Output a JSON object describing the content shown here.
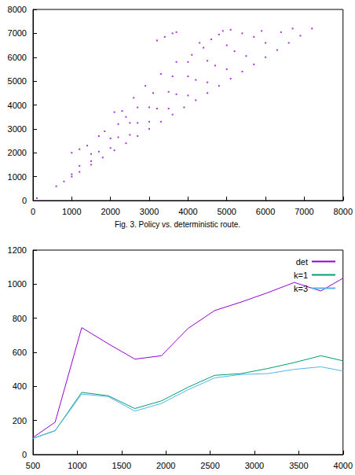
{
  "chart_data": [
    {
      "type": "scatter",
      "title": "Fig. 3. Policy vs. deterministic route.",
      "color": "#9400d3",
      "x": [
        600,
        800,
        1000,
        1200,
        1500,
        1800,
        2100,
        2400,
        2700,
        3000,
        3300,
        3600,
        3900,
        4200,
        4500,
        4800,
        5100,
        5400,
        5700,
        6000,
        6300,
        6600,
        6900,
        7200,
        1000,
        1500,
        2000,
        2500,
        3000,
        3500,
        4000,
        4500,
        5000,
        5500,
        6000,
        6400,
        1200,
        1700,
        2200,
        2700,
        3200,
        3700,
        4200,
        4700,
        5200,
        5700,
        5900,
        1500,
        2000,
        2500,
        3000,
        3500,
        4000,
        4500,
        5000,
        5400,
        2200,
        2700,
        3100,
        3600,
        4000,
        4400,
        4800,
        2100,
        2300,
        2600,
        2900,
        3300,
        3700,
        4100,
        4300,
        4600,
        5100,
        4900,
        1850,
        1700,
        2400,
        100,
        1000,
        1200,
        1400,
        3200,
        3400,
        3600,
        3700,
        6700
      ],
      "values": [
        600,
        800,
        1000,
        1200,
        1500,
        1800,
        2100,
        2400,
        2700,
        3000,
        3300,
        3600,
        3900,
        4200,
        4500,
        4800,
        5100,
        5400,
        5700,
        6000,
        6300,
        6600,
        6900,
        7200,
        1100,
        1650,
        2200,
        2750,
        3300,
        3850,
        4400,
        4950,
        5500,
        6050,
        6600,
        7050,
        1450,
        2050,
        2650,
        3250,
        3850,
        4450,
        5050,
        5650,
        6250,
        6850,
        7100,
        1950,
        2600,
        3250,
        3900,
        4550,
        5200,
        5850,
        6500,
        7000,
        3200,
        3900,
        4500,
        5200,
        5800,
        6400,
        6950,
        3700,
        3750,
        4300,
        4800,
        5300,
        5800,
        6100,
        6600,
        6750,
        7150,
        7100,
        2900,
        2700,
        3500,
        100,
        2000,
        2150,
        2300,
        6700,
        6850,
        7000,
        7050,
        7200
      ],
      "xlim": [
        0,
        8000
      ],
      "xticks": [
        0,
        1000,
        2000,
        3000,
        4000,
        5000,
        6000,
        7000,
        8000
      ],
      "ylim": [
        0,
        8000
      ],
      "yticks": [
        0,
        1000,
        2000,
        3000,
        4000,
        5000,
        6000,
        7000,
        8000
      ]
    },
    {
      "type": "line",
      "legend": "upper right",
      "x": [
        500,
        750,
        1050,
        1350,
        1650,
        1950,
        2250,
        2550,
        2850,
        3150,
        3450,
        3750,
        4000
      ],
      "series": [
        {
          "name": "det",
          "color": "#9400d3",
          "values": [
            100,
            190,
            745,
            650,
            560,
            580,
            740,
            845,
            895,
            950,
            1010,
            960,
            1035
          ]
        },
        {
          "name": "k=1",
          "color": "#009e73",
          "values": [
            95,
            140,
            365,
            345,
            270,
            315,
            395,
            465,
            475,
            505,
            540,
            580,
            550
          ]
        },
        {
          "name": "k=3",
          "color": "#56b4e9",
          "values": [
            95,
            140,
            355,
            340,
            255,
            300,
            380,
            450,
            470,
            475,
            500,
            515,
            490
          ]
        }
      ],
      "xlim": [
        500,
        4000
      ],
      "xticks": [
        500,
        1000,
        1500,
        2000,
        2500,
        3000,
        3500,
        4000
      ],
      "ylim": [
        0,
        1200
      ],
      "yticks": [
        0,
        200,
        400,
        600,
        800,
        1000,
        1200
      ]
    }
  ]
}
